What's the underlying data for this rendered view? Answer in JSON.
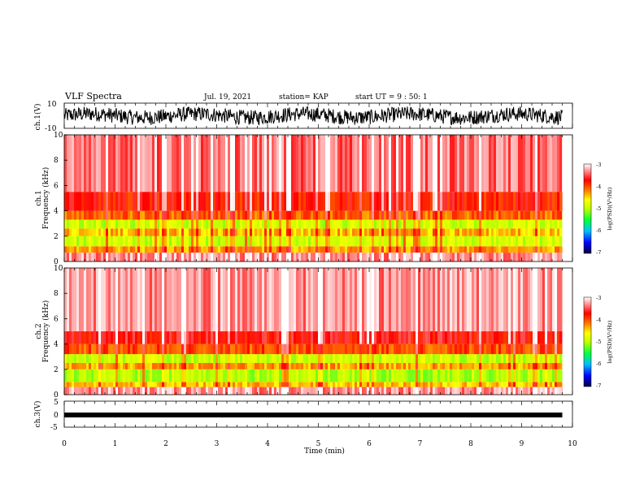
{
  "header": {
    "title": "VLF Spectra",
    "date": "Jul. 19, 2021",
    "station": "station= KAP",
    "start": "start UT = 9 : 50: 1"
  },
  "chart_data": [
    {
      "type": "line",
      "ylabel": "ch.1(V)",
      "ylim": [
        -10,
        10
      ],
      "yticks": [
        "10",
        "-10"
      ],
      "xlim": [
        0,
        10
      ],
      "series": [
        {
          "values_description": "noisy waveform between about -8 and 8 V over 0 to 9.8 min"
        }
      ]
    },
    {
      "type": "heatmap",
      "ylabel_line1": "ch.1",
      "ylabel_line2": "Frequency (kHz)",
      "ylim": [
        0,
        10
      ],
      "yticks": [
        "0",
        "2",
        "4",
        "6",
        "8",
        "10"
      ],
      "xlim": [
        0,
        10
      ],
      "data_end_min": 9.8,
      "bands": [
        {
          "from": 0.0,
          "to": 0.7,
          "level": -3.3
        },
        {
          "from": 0.7,
          "to": 1.2,
          "level": -4.3
        },
        {
          "from": 1.2,
          "to": 2.0,
          "level": -4.9
        },
        {
          "from": 2.0,
          "to": 2.6,
          "level": -4.4
        },
        {
          "from": 2.6,
          "to": 3.3,
          "level": -4.9
        },
        {
          "from": 3.3,
          "to": 4.0,
          "level": -4.1
        },
        {
          "from": 4.0,
          "to": 5.5,
          "level": -3.8
        },
        {
          "from": 5.5,
          "to": 10.0,
          "level": -3.4
        }
      ],
      "colorbar": {
        "label": "log(PSD)(V²/Hz)",
        "ticks": [
          "-3",
          "-4",
          "-5",
          "-6",
          "-7"
        ],
        "range": [
          -7,
          -3
        ]
      }
    },
    {
      "type": "heatmap",
      "ylabel_line1": "ch.2",
      "ylabel_line2": "Frequency (kHz)",
      "ylim": [
        0,
        10
      ],
      "yticks": [
        "0",
        "2",
        "4",
        "6",
        "8",
        "10"
      ],
      "xlim": [
        0,
        10
      ],
      "data_end_min": 9.8,
      "bands": [
        {
          "from": 0.0,
          "to": 0.6,
          "level": -3.3
        },
        {
          "from": 0.6,
          "to": 1.0,
          "level": -4.4
        },
        {
          "from": 1.0,
          "to": 2.0,
          "level": -5.0
        },
        {
          "from": 2.0,
          "to": 2.5,
          "level": -4.3
        },
        {
          "from": 2.5,
          "to": 3.2,
          "level": -4.9
        },
        {
          "from": 3.2,
          "to": 4.0,
          "level": -4.0
        },
        {
          "from": 4.0,
          "to": 5.0,
          "level": -3.7
        },
        {
          "from": 5.0,
          "to": 10.0,
          "level": -3.3
        }
      ],
      "colorbar": {
        "label": "log(PSD)(V²/Hz)",
        "ticks": [
          "-3",
          "-4",
          "-5",
          "-6",
          "-7"
        ],
        "range": [
          -7,
          -3
        ]
      }
    },
    {
      "type": "line",
      "ylabel": "ch.3(V)",
      "ylim": [
        -5,
        5
      ],
      "yticks": [
        "5",
        "0",
        "-5"
      ],
      "xlim": [
        0,
        10
      ],
      "series": [
        {
          "values_description": "thick flat band around -1 V from 0 to 9.8 min"
        }
      ]
    }
  ],
  "xaxis": {
    "label": "Time (min)",
    "ticks": [
      "0",
      "1",
      "2",
      "3",
      "4",
      "5",
      "6",
      "7",
      "8",
      "9",
      "10"
    ]
  },
  "colors": {
    "cmap": [
      "#000040",
      "#0000ff",
      "#00c0ff",
      "#00ff40",
      "#c0ff00",
      "#ffff00",
      "#ff8000",
      "#ff0000",
      "#ffffff"
    ]
  }
}
